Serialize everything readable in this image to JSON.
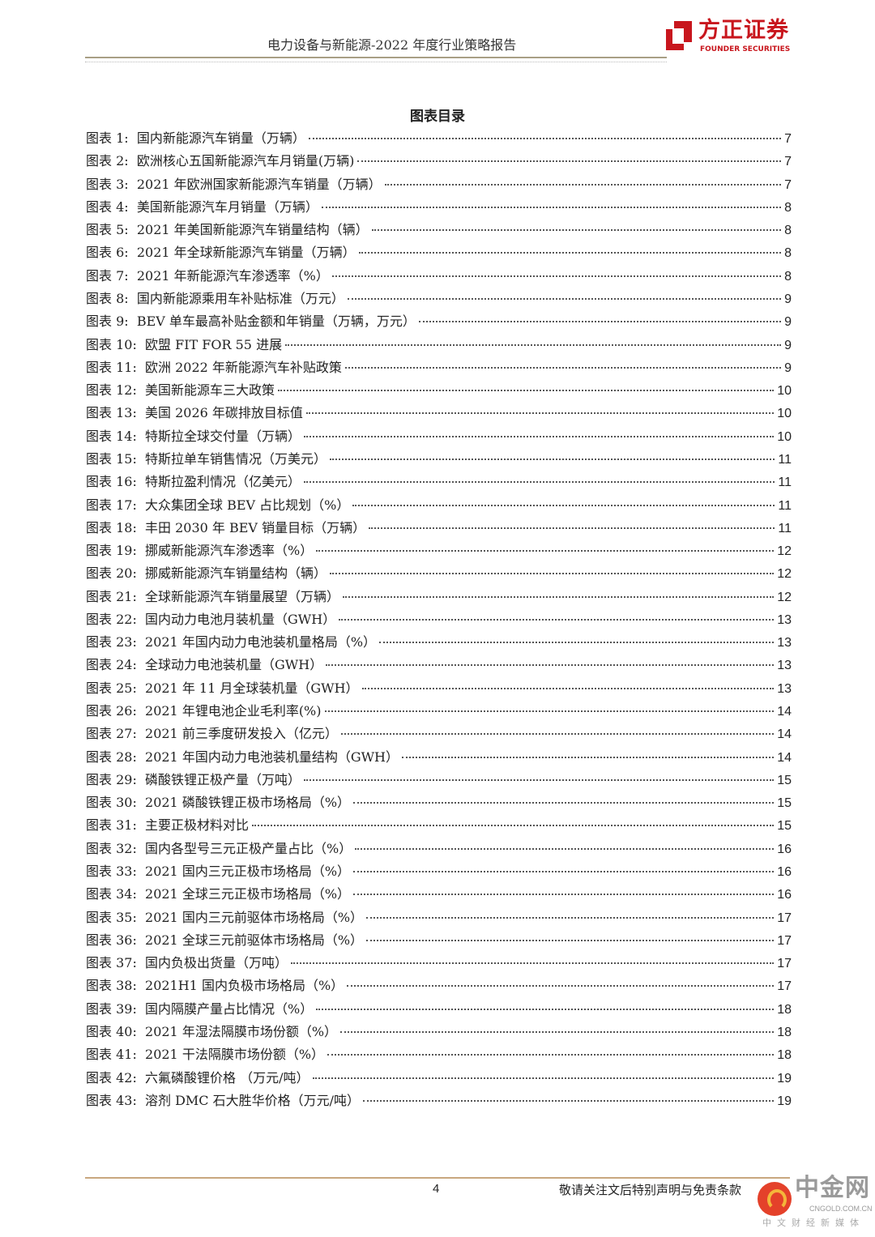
{
  "header": {
    "title": "电力设备与新能源-2022 年度行业策略报告",
    "logo_cn": "方正证券",
    "logo_en": "FOUNDER SECURITIES",
    "brand_color": "#c8161d"
  },
  "toc": {
    "title": "图表目录",
    "items": [
      {
        "label": "图表 1:  国内新能源汽车销量（万辆）",
        "page": "7"
      },
      {
        "label": "图表 2:  欧洲核心五国新能源汽车月销量(万辆)",
        "page": "7"
      },
      {
        "label": "图表 3:  2021 年欧洲国家新能源汽车销量（万辆）",
        "page": "7"
      },
      {
        "label": "图表 4:  美国新能源汽车月销量（万辆）",
        "page": "8"
      },
      {
        "label": "图表 5:  2021 年美国新能源汽车销量结构（辆）",
        "page": "8"
      },
      {
        "label": "图表 6:  2021 年全球新能源汽车销量（万辆）",
        "page": "8"
      },
      {
        "label": "图表 7:  2021 年新能源汽车渗透率（%）",
        "page": "8"
      },
      {
        "label": "图表 8:  国内新能源乘用车补贴标准（万元）",
        "page": "9"
      },
      {
        "label": "图表 9:  BEV 单车最高补贴金额和年销量（万辆，万元）",
        "page": "9"
      },
      {
        "label": "图表 10:  欧盟 FIT FOR 55 进展",
        "page": "9"
      },
      {
        "label": "图表 11:  欧洲 2022 年新能源汽车补贴政策",
        "page": "9"
      },
      {
        "label": "图表 12:  美国新能源车三大政策",
        "page": "10"
      },
      {
        "label": "图表 13:  美国 2026 年碳排放目标值",
        "page": "10"
      },
      {
        "label": "图表 14:  特斯拉全球交付量（万辆）",
        "page": "10"
      },
      {
        "label": "图表 15:  特斯拉单车销售情况（万美元）",
        "page": "11"
      },
      {
        "label": "图表 16:  特斯拉盈利情况（亿美元）",
        "page": "11"
      },
      {
        "label": "图表 17:  大众集团全球 BEV 占比规划（%）",
        "page": "11"
      },
      {
        "label": "图表 18:  丰田 2030 年 BEV 销量目标（万辆）",
        "page": "11"
      },
      {
        "label": "图表 19:  挪威新能源汽车渗透率（%）",
        "page": "12"
      },
      {
        "label": "图表 20:  挪威新能源汽车销量结构（辆）",
        "page": "12"
      },
      {
        "label": "图表 21:  全球新能源汽车销量展望（万辆）",
        "page": "12"
      },
      {
        "label": "图表 22:  国内动力电池月装机量（GWH）",
        "page": "13"
      },
      {
        "label": "图表 23:  2021 年国内动力电池装机量格局（%）",
        "page": "13"
      },
      {
        "label": "图表 24:  全球动力电池装机量（GWH）",
        "page": "13"
      },
      {
        "label": "图表 25:  2021 年 11 月全球装机量（GWH）",
        "page": "13"
      },
      {
        "label": "图表 26:  2021 年锂电池企业毛利率(%)",
        "page": "14"
      },
      {
        "label": "图表 27:  2021 前三季度研发投入（亿元）",
        "page": "14"
      },
      {
        "label": "图表 28:  2021 年国内动力电池装机量结构（GWH）",
        "page": "14"
      },
      {
        "label": "图表 29:  磷酸铁锂正极产量（万吨）",
        "page": "15"
      },
      {
        "label": "图表 30:  2021 磷酸铁锂正极市场格局（%）",
        "page": "15"
      },
      {
        "label": "图表 31:  主要正极材料对比",
        "page": "15"
      },
      {
        "label": "图表 32:  国内各型号三元正极产量占比（%）",
        "page": "16"
      },
      {
        "label": "图表 33:  2021 国内三元正极市场格局（%）",
        "page": "16"
      },
      {
        "label": "图表 34:  2021 全球三元正极市场格局（%）",
        "page": "16"
      },
      {
        "label": "图表 35:  2021 国内三元前驱体市场格局（%）",
        "page": "17"
      },
      {
        "label": "图表 36:  2021 全球三元前驱体市场格局（%）",
        "page": "17"
      },
      {
        "label": "图表 37:  国内负极出货量（万吨）",
        "page": "17"
      },
      {
        "label": "图表 38:  2021H1 国内负极市场格局（%）",
        "page": "17"
      },
      {
        "label": "图表 39:  国内隔膜产量占比情况（%）",
        "page": "18"
      },
      {
        "label": "图表 40:  2021 年湿法隔膜市场份额（%）",
        "page": "18"
      },
      {
        "label": "图表 41:  2021 干法隔膜市场份额（%）",
        "page": "18"
      },
      {
        "label": "图表 42:  六氟磷酸锂价格 （万元/吨）",
        "page": "19"
      },
      {
        "label": "图表 43:  溶剂 DMC 石大胜华价格（万元/吨）",
        "page": "19"
      }
    ]
  },
  "footer": {
    "page_number": "4",
    "note": "敬请关注文后特别声明与免责条款"
  },
  "watermark": {
    "cn": "中金网",
    "en": "CNGOLD.COM.CN",
    "sub": "中文财经新媒体"
  }
}
